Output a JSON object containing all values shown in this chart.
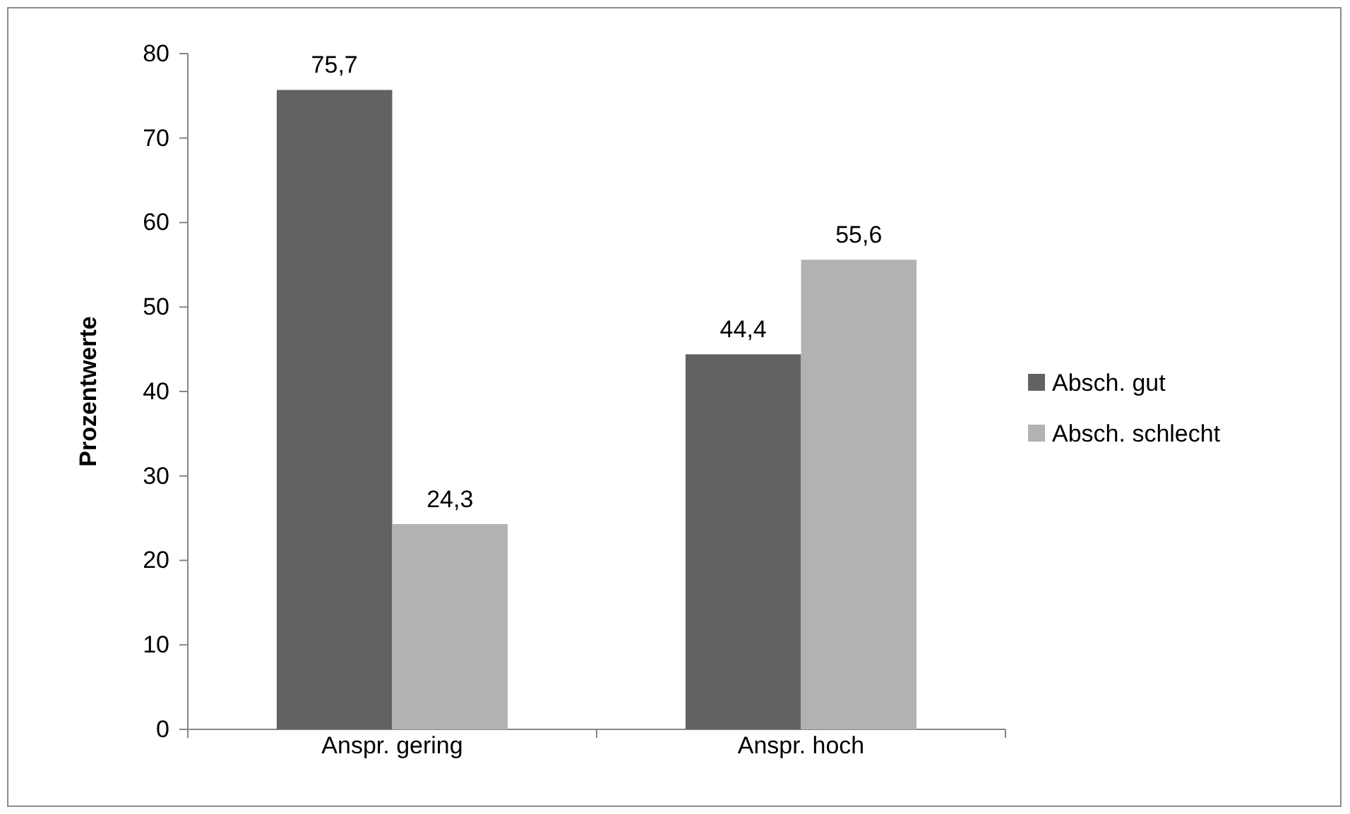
{
  "chart_data": {
    "type": "bar",
    "ylabel": "Prozentwerte",
    "categories": [
      "Anspr. gering",
      "Anspr. hoch"
    ],
    "series": [
      {
        "name": "Absch. gut",
        "color": "#626262",
        "values": [
          75.7,
          44.4
        ],
        "value_labels": [
          "75,7",
          "44,4"
        ]
      },
      {
        "name": "Absch. schlecht",
        "color": "#b2b2b2",
        "values": [
          24.3,
          55.6
        ],
        "value_labels": [
          "24,3",
          "55,6"
        ]
      }
    ],
    "ylim": [
      0,
      80
    ],
    "yticks": [
      0,
      10,
      20,
      30,
      40,
      50,
      60,
      70,
      80
    ],
    "legend": "right",
    "grid": false
  }
}
